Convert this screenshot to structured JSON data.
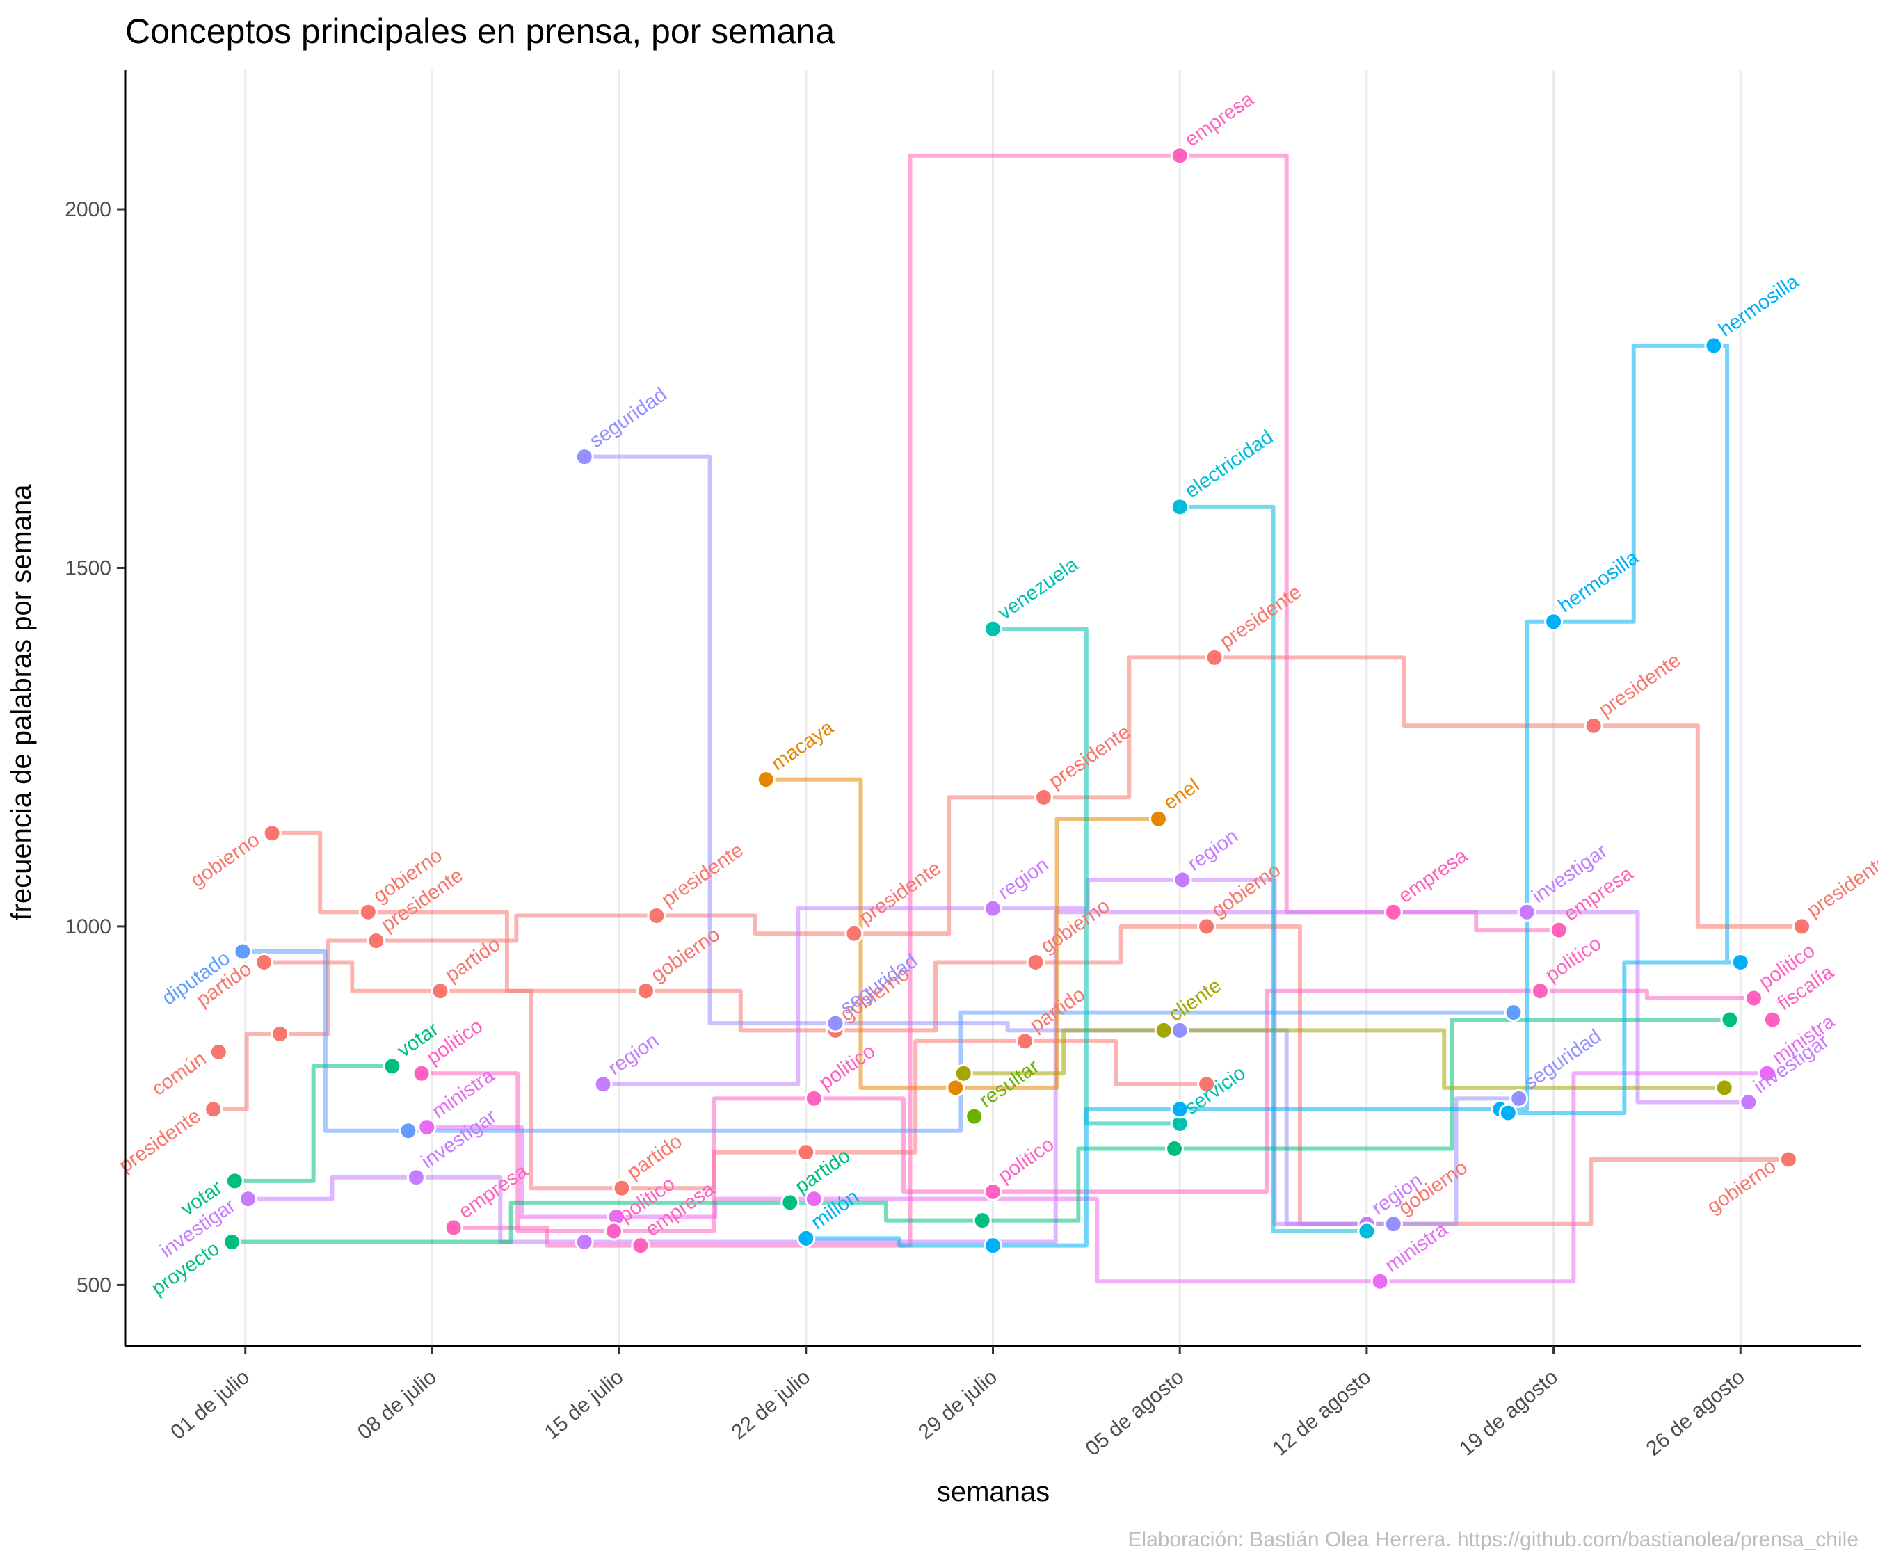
{
  "chart_data": {
    "type": "line",
    "title": "Conceptos principales en prensa, por semana",
    "xlabel": "semanas",
    "ylabel": "frecuencia de palabras por semana",
    "caption": "Elaboración: Bastián Olea Herrera. https://github.com/bastianolea/prensa_chile",
    "x_ticks": [
      "01 de julio",
      "08 de julio",
      "15 de julio",
      "22 de julio",
      "29 de julio",
      "05 de agosto",
      "12 de agosto",
      "19 de agosto",
      "26 de agosto"
    ],
    "y_ticks": [
      500,
      1000,
      1500,
      2000
    ],
    "ylim": [
      415,
      2195
    ],
    "xlim_days": [
      -4.5,
      60.5
    ],
    "grid": "vertical major lines only",
    "colors": {
      "presidente": "#F8766D",
      "gobierno": "#F8766D",
      "empresa": "#FF62BC",
      "partido": "#F8766D",
      "ministra": "#E76BF3",
      "investigar": "#C77CFF",
      "politico": "#FF61C3",
      "seguridad": "#9590FF",
      "region": "#C77CFF",
      "diputado": "#619CFF",
      "votar": "#00BF7D",
      "proyecto": "#00BF7D",
      "comun": "#F8766D",
      "macaya": "#E58700",
      "venezuela": "#00C0AF",
      "electricidad": "#00BCD8",
      "hermosilla": "#00B0F6",
      "enel": "#E58700",
      "cliente": "#A3A500",
      "servicio": "#00BCD8",
      "resultar": "#6BB100",
      "millon": "#00B0F6",
      "fiscalia": "#FF61C3"
    },
    "series": [
      {
        "name": "presidente",
        "color": "#F8766D",
        "points": [
          [
            -1.2,
            745,
            "presidente"
          ],
          [
            1.3,
            850,
            ""
          ],
          [
            4.9,
            980,
            "presidente"
          ],
          [
            15.4,
            1015,
            "presidente"
          ],
          [
            22.8,
            990,
            "presidente"
          ],
          [
            29.9,
            1180,
            "presidente"
          ],
          [
            36.3,
            1375,
            "presidente"
          ],
          [
            50.5,
            1280,
            "presidente"
          ],
          [
            58.3,
            1000,
            "presidente"
          ]
        ]
      },
      {
        "name": "gobierno",
        "color": "#F8766D",
        "points": [
          [
            1.0,
            1130,
            "gobierno"
          ],
          [
            4.6,
            1020,
            "gobierno"
          ],
          [
            15.0,
            910,
            "gobierno"
          ],
          [
            22.1,
            855,
            "gobierno"
          ],
          [
            29.6,
            950,
            "gobierno"
          ],
          [
            36.0,
            1000,
            "gobierno"
          ],
          [
            43.0,
            585,
            "gobierno"
          ],
          [
            57.8,
            675,
            "gobierno"
          ]
        ]
      },
      {
        "name": "empresa",
        "color": "#FF62BC",
        "points": [
          [
            7.8,
            580,
            "empresa"
          ],
          [
            14.8,
            555,
            "empresa"
          ],
          [
            35.0,
            2075,
            "empresa"
          ],
          [
            43.0,
            1020,
            "empresa"
          ],
          [
            49.2,
            995,
            "empresa"
          ]
        ]
      },
      {
        "name": "partido",
        "color": "#F8766D",
        "points": [
          [
            0.7,
            950,
            "partido"
          ],
          [
            7.3,
            910,
            "partido"
          ],
          [
            14.1,
            635,
            "partido"
          ],
          [
            21.0,
            685,
            ""
          ],
          [
            29.2,
            840,
            "partido"
          ],
          [
            36.0,
            780,
            ""
          ]
        ]
      },
      {
        "name": "ministra",
        "color": "#E76BF3",
        "points": [
          [
            6.8,
            720,
            "ministra"
          ],
          [
            13.9,
            595,
            ""
          ],
          [
            21.3,
            620,
            ""
          ],
          [
            42.5,
            505,
            "ministra"
          ],
          [
            57.0,
            795,
            "ministra"
          ]
        ]
      },
      {
        "name": "investigar",
        "color": "#C77CFF",
        "points": [
          [
            0.1,
            620,
            "investigar"
          ],
          [
            6.4,
            650,
            "investigar"
          ],
          [
            12.7,
            560,
            ""
          ],
          [
            48.0,
            1020,
            "investigar"
          ],
          [
            56.3,
            755,
            "investigar"
          ]
        ]
      },
      {
        "name": "politico",
        "color": "#FF61C3",
        "points": [
          [
            6.6,
            795,
            "politico"
          ],
          [
            13.8,
            575,
            "politico"
          ],
          [
            21.3,
            760,
            "politico"
          ],
          [
            28.0,
            630,
            "politico"
          ],
          [
            48.5,
            910,
            "politico"
          ],
          [
            56.5,
            900,
            "politico"
          ]
        ]
      },
      {
        "name": "seguridad",
        "color": "#9590FF",
        "points": [
          [
            12.7,
            1655,
            "seguridad"
          ],
          [
            22.1,
            865,
            "seguridad"
          ],
          [
            35.0,
            855,
            ""
          ],
          [
            43.0,
            585,
            ""
          ],
          [
            47.7,
            760,
            "seguridad"
          ]
        ]
      },
      {
        "name": "region",
        "color": "#C77CFF",
        "points": [
          [
            13.4,
            780,
            "region"
          ],
          [
            28.0,
            1025,
            "region"
          ],
          [
            35.1,
            1065,
            "region"
          ],
          [
            42.0,
            585,
            "region"
          ]
        ]
      },
      {
        "name": "diputado",
        "color": "#619CFF",
        "points": [
          [
            -0.1,
            965,
            "diputado"
          ],
          [
            6.1,
            715,
            ""
          ],
          [
            47.5,
            880,
            ""
          ]
        ]
      },
      {
        "name": "votar",
        "color": "#00BF7D",
        "points": [
          [
            -0.4,
            645,
            "votar"
          ],
          [
            5.5,
            805,
            "votar"
          ]
        ]
      },
      {
        "name": "proyecto",
        "color": "#00BF7D",
        "points": [
          [
            -0.5,
            560,
            "proyecto"
          ],
          [
            20.4,
            615,
            "partido"
          ],
          [
            27.6,
            590,
            ""
          ],
          [
            34.8,
            690,
            ""
          ],
          [
            55.6,
            870,
            ""
          ]
        ]
      },
      {
        "name": "comun",
        "color": "#F8766D",
        "points": [
          [
            -1.0,
            825,
            "común"
          ]
        ]
      },
      {
        "name": "macaya",
        "color": "#E58700",
        "points": [
          [
            19.5,
            1205,
            "macaya"
          ],
          [
            26.6,
            775,
            ""
          ],
          [
            34.2,
            1150,
            "enel"
          ]
        ]
      },
      {
        "name": "cliente",
        "color": "#A3A500",
        "points": [
          [
            26.9,
            795,
            ""
          ],
          [
            34.4,
            855,
            "cliente"
          ],
          [
            55.4,
            775,
            ""
          ]
        ]
      },
      {
        "name": "resultar",
        "color": "#6BB100",
        "points": [
          [
            27.3,
            735,
            "resultar"
          ]
        ]
      },
      {
        "name": "venezuela",
        "color": "#00C0AF",
        "points": [
          [
            28.0,
            1415,
            "venezuela"
          ],
          [
            35.0,
            725,
            "servicio"
          ]
        ]
      },
      {
        "name": "electricidad",
        "color": "#00BCD8",
        "points": [
          [
            35.0,
            1585,
            "electricidad"
          ],
          [
            42.0,
            575,
            ""
          ]
        ]
      },
      {
        "name": "hermosilla",
        "color": "#00B0F6",
        "points": [
          [
            21.0,
            565,
            "millón"
          ],
          [
            28.0,
            555,
            ""
          ],
          [
            35.0,
            745,
            ""
          ],
          [
            47.0,
            745,
            ""
          ],
          [
            49.0,
            1425,
            "hermosilla"
          ],
          [
            55.0,
            1810,
            "hermosilla"
          ],
          [
            56.0,
            950,
            ""
          ],
          [
            47.3,
            740,
            ""
          ]
        ]
      },
      {
        "name": "fiscalia",
        "color": "#FF61C3",
        "points": [
          [
            57.2,
            870,
            "fiscalía"
          ]
        ]
      }
    ]
  }
}
